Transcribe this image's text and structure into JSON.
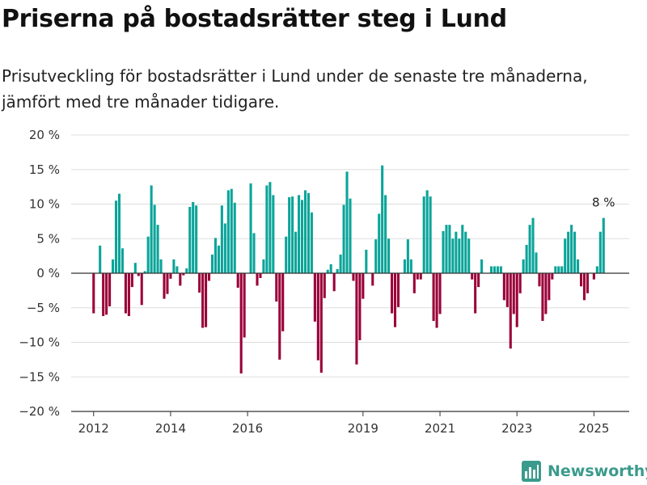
{
  "title": "Priserna på bostadsrätter steg i Lund",
  "subtitle": "Prisutveckling för bostadsrätter i Lund under de senaste tre månaderna, jämfört med tre månader tidigare.",
  "brand": {
    "name": "Newsworthy",
    "logo_icon": "bar-chart-logo-icon",
    "color": "#3a9b8c"
  },
  "chart_data": {
    "type": "bar",
    "ylim": [
      -20,
      20
    ],
    "yticks": [
      20,
      15,
      10,
      5,
      0,
      -5,
      -10,
      -15,
      -20
    ],
    "ytick_labels": [
      "20 %",
      "15 %",
      "10 %",
      "5 %",
      "0 %",
      "−5 %",
      "−10 %",
      "−15 %",
      "−20 %"
    ],
    "xticks": [
      {
        "label": "2012",
        "x": "2012-01"
      },
      {
        "label": "2014",
        "x": "2014-01"
      },
      {
        "label": "2016",
        "x": "2016-01"
      },
      {
        "label": "2019",
        "x": "2019-01"
      },
      {
        "label": "2021",
        "x": "2021-01"
      },
      {
        "label": "2023",
        "x": "2023-01"
      },
      {
        "label": "2025",
        "x": "2025-01"
      }
    ],
    "xlim": [
      "2011-06",
      "2025-12"
    ],
    "grid": true,
    "colors": {
      "positive": "#0aa499",
      "negative": "#9a0038",
      "zero_line": "#333333",
      "grid": "#dddddd"
    },
    "start_month": "2012-01",
    "values": [
      -5.8,
      0,
      4,
      -6.2,
      -6,
      -4.8,
      2,
      10.5,
      11.5,
      3.6,
      -5.8,
      -6.2,
      -2,
      1.5,
      -0.4,
      -4.6,
      0.3,
      5.3,
      12.7,
      9.9,
      7,
      2,
      -3.7,
      -3,
      -0.8,
      2,
      1,
      -1.8,
      -0.3,
      0.7,
      9.6,
      10.3,
      9.8,
      -2.8,
      -7.9,
      -7.8,
      -1.1,
      2.7,
      5.1,
      4,
      9.8,
      7.2,
      12,
      12.2,
      10.2,
      -2.1,
      -14.5,
      -9.3,
      0,
      13,
      5.8,
      -1.8,
      -0.7,
      2,
      12.7,
      13.2,
      11.3,
      -4.1,
      -12.5,
      -8.4,
      5.3,
      11,
      11.1,
      6,
      11.3,
      10.6,
      12,
      11.6,
      8.8,
      -7,
      -12.6,
      -14.4,
      -3.6,
      0.5,
      1.3,
      -2.6,
      0.6,
      2.7,
      9.9,
      14.7,
      10.8,
      -1.1,
      -13.2,
      -9.7,
      -3.7,
      3.4,
      0,
      -1.8,
      4.9,
      8.6,
      15.6,
      11.3,
      5,
      -5.8,
      -7.8,
      -4.9,
      0,
      2,
      4.9,
      2,
      -2.9,
      -0.9,
      -0.9,
      11.1,
      12,
      11.1,
      -6.9,
      -7.9,
      -5.9,
      6.1,
      7,
      7,
      5,
      6,
      5,
      7,
      6,
      5,
      -0.9,
      -5.8,
      -2,
      2,
      0,
      0,
      1,
      1,
      1,
      1,
      -3.9,
      -4.9,
      -10.9,
      -5.9,
      -7.8,
      -2.9,
      2,
      4.1,
      7,
      8,
      3,
      -1.9,
      -6.9,
      -5.9,
      -3.9,
      -0.9,
      1,
      1,
      1,
      5,
      6,
      7,
      6,
      2,
      -1.9,
      -3.9,
      -2.9,
      0,
      -0.9,
      1,
      6,
      8
    ],
    "annotations": [
      {
        "text": "8 %",
        "target": "last"
      }
    ]
  }
}
